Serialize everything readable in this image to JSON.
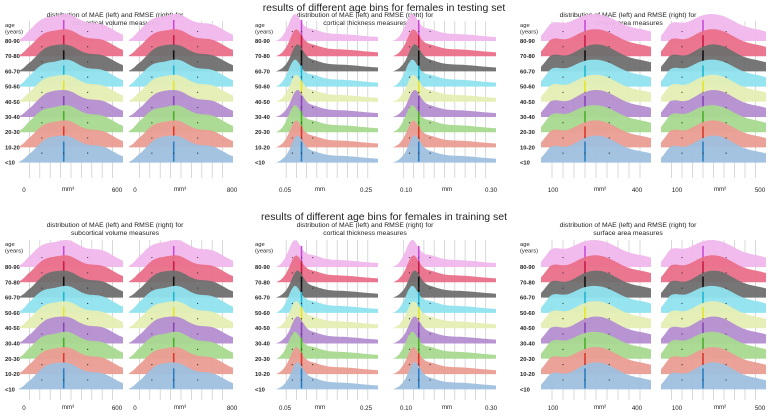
{
  "figure": {
    "section_titles": [
      "results of different age bins for females in testing set",
      "results of different age bins for females in training set"
    ]
  },
  "chart_data": {
    "type": "ridgeline",
    "age_header": [
      "age",
      "(years)"
    ],
    "age_bins": [
      "80-90",
      "70-80",
      "60-70",
      "50-60",
      "40-50",
      "30-40",
      "20-30",
      "10-20",
      "<10"
    ],
    "bin_colors": [
      "#f0b8ec",
      "#ea6f8a",
      "#6f6f6f",
      "#8fe3ef",
      "#e6eeb4",
      "#b48ed0",
      "#a8d98f",
      "#ea9d92",
      "#9ec0de"
    ],
    "median_colors": [
      "#c84bd8",
      "#c41d4a",
      "#111111",
      "#22b6cf",
      "#e5e52a",
      "#8747b4",
      "#4cae2c",
      "#d83a2d",
      "#2c7fc2"
    ],
    "groups": [
      {
        "title_line1": "distribution of MAE (left) and RMSE (right) for",
        "title_line2": "subcortical volume  measures",
        "panels": [
          {
            "metric": "MAE",
            "unit": "mm³",
            "xmin": 0,
            "xmax": 600,
            "ticks": [
              "0",
              "600"
            ]
          },
          {
            "metric": "RMSE",
            "unit": "mm³",
            "xmin": 0,
            "xmax": 800,
            "ticks": [
              "0",
              "800"
            ]
          }
        ]
      },
      {
        "title_line1": "distribution of MAE (left) and RMSE (right) for",
        "title_line2": "cortical thickness measures",
        "panels": [
          {
            "metric": "MAE",
            "unit": "mm",
            "xmin": 0.05,
            "xmax": 0.25,
            "ticks": [
              "0.05",
              "0.25"
            ]
          },
          {
            "metric": "RMSE",
            "unit": "mm",
            "xmin": 0.1,
            "xmax": 0.3,
            "ticks": [
              "0.10",
              "0.30"
            ]
          }
        ]
      },
      {
        "title_line1": "distribution of MAE (left) and RMSE (right) for",
        "title_line2": "surface area measures",
        "panels": [
          {
            "metric": "MAE",
            "unit": "mm²",
            "xmin": 100,
            "xmax": 400,
            "ticks": [
              "100",
              "400"
            ]
          },
          {
            "metric": "RMSE",
            "unit": "mm²",
            "xmin": 100,
            "xmax": 500,
            "ticks": [
              "100",
              "500"
            ]
          }
        ]
      }
    ]
  }
}
